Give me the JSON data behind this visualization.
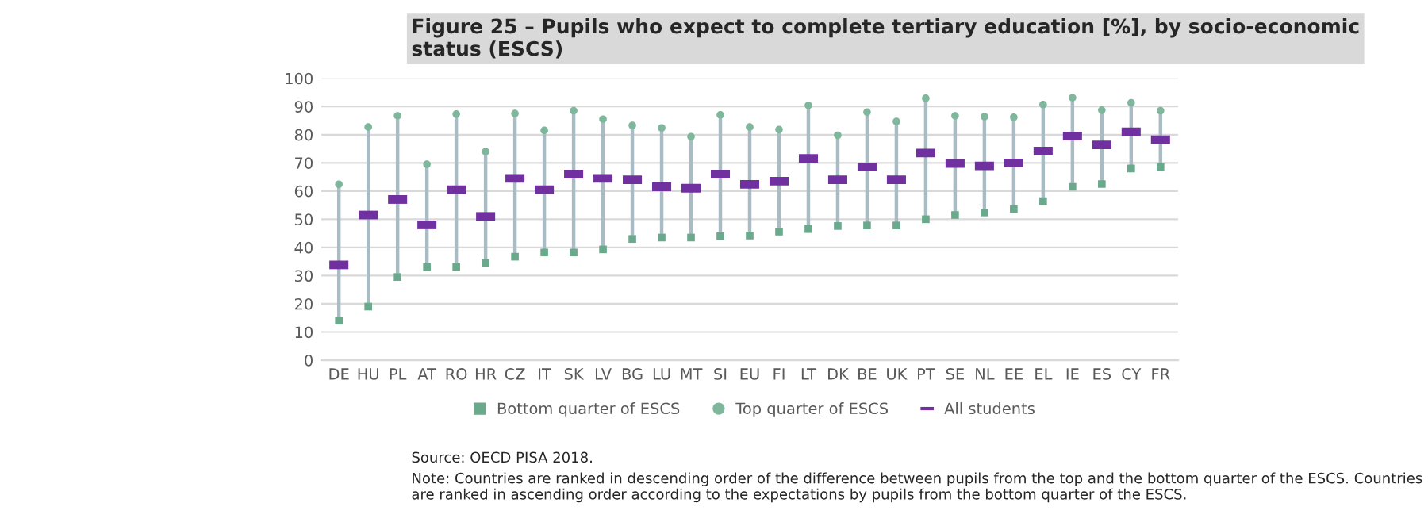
{
  "chart_data": {
    "type": "scatter",
    "title": "Figure 25 – Pupils who expect to complete tertiary education [%], by socio-economic status (ESCS)",
    "categories": [
      "DE",
      "HU",
      "PL",
      "AT",
      "RO",
      "HR",
      "CZ",
      "IT",
      "SK",
      "LV",
      "BG",
      "LU",
      "MT",
      "SI",
      "EU",
      "FI",
      "LT",
      "DK",
      "BE",
      "UK",
      "PT",
      "SE",
      "NL",
      "EE",
      "EL",
      "IE",
      "ES",
      "CY",
      "FR"
    ],
    "series": [
      {
        "name": "Bottom quarter of ESCS",
        "color": "#6aa98c",
        "marker": "square",
        "values": [
          14,
          19,
          29.5,
          33,
          33,
          34.5,
          36.7,
          38.2,
          38.2,
          39.3,
          43,
          43.5,
          43.5,
          44,
          44.2,
          45.6,
          46.5,
          47.6,
          47.8,
          47.8,
          50,
          51.5,
          52.4,
          53.6,
          56.4,
          61.5,
          62.5,
          68,
          68.5
        ]
      },
      {
        "name": "Top quarter of ESCS",
        "color": "#7fb79d",
        "marker": "circle",
        "values": [
          62.4,
          82.7,
          86.7,
          69.5,
          87.3,
          74,
          87.5,
          81.5,
          88.5,
          85.5,
          83.3,
          82.4,
          79.3,
          87,
          82.7,
          81.8,
          90.4,
          79.8,
          88,
          84.7,
          92.9,
          86.7,
          86.4,
          86.2,
          90.7,
          93.1,
          88.7,
          91.3,
          88.5
        ]
      },
      {
        "name": "All students",
        "color": "#7030a0",
        "values": [
          33.8,
          51.5,
          57,
          48,
          60.5,
          51,
          64.5,
          60.5,
          66,
          64.5,
          64,
          61.5,
          61,
          66,
          62.4,
          63.5,
          71.6,
          64,
          68.5,
          64,
          73.5,
          69.8,
          68.9,
          70,
          74.2,
          79.5,
          76.4,
          81,
          78.2
        ]
      }
    ],
    "ylim": [
      0,
      100
    ],
    "yticks": [
      0,
      10,
      20,
      30,
      40,
      50,
      60,
      70,
      80,
      90,
      100
    ],
    "grid": "y",
    "legend": "bottom",
    "annotations": [
      "Source: OECD PISA 2018.",
      "Note: Countries are ranked in descending order of the difference between pupils from the top and the bottom quarter of the ESCS. Countries are ranked in ascending order according to the expectations by pupils from the bottom quarter of the ESCS."
    ]
  }
}
